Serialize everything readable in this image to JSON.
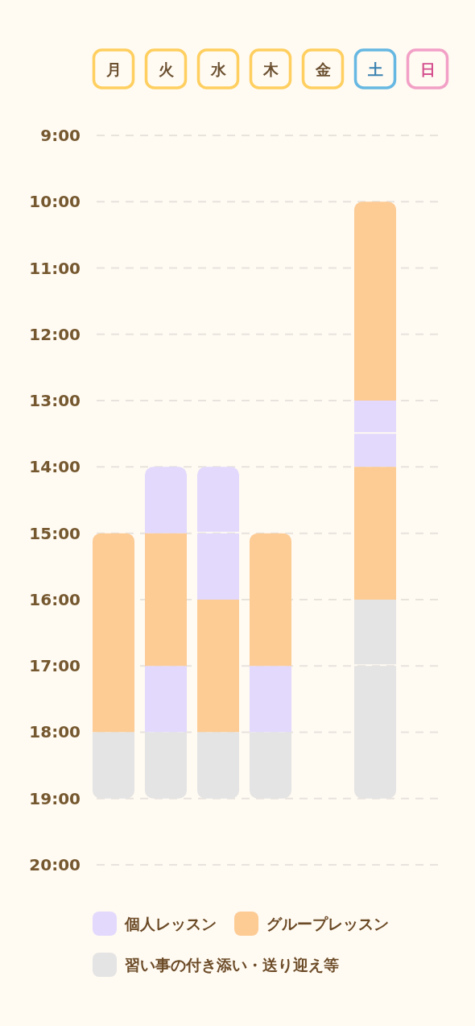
{
  "chart_data": {
    "type": "bar",
    "categories": [
      "月",
      "火",
      "水",
      "木",
      "金",
      "土",
      "日"
    ],
    "series": [
      {
        "name": "個人レッスン",
        "color": "#e2d9fd",
        "base": [
          null,
          14,
          14,
          null,
          null,
          13,
          null
        ],
        "values": [
          null,
          1,
          1,
          null,
          null,
          0.5,
          null
        ]
      },
      {
        "color": "#e2d9fd",
        "base": [
          null,
          17,
          15,
          17,
          null,
          13.5,
          null
        ],
        "values": [
          null,
          1,
          1,
          1,
          null,
          0.5,
          null
        ]
      },
      {
        "name": "グループレッスン",
        "color": "#fdcb94",
        "base": [
          15,
          15,
          16,
          15,
          null,
          10,
          null
        ],
        "values": [
          3,
          2,
          2,
          2,
          null,
          3,
          null
        ]
      },
      {
        "color": "#fdcb94",
        "base": [
          null,
          null,
          null,
          null,
          null,
          14,
          null
        ],
        "values": [
          null,
          null,
          null,
          null,
          null,
          2,
          null
        ]
      },
      {
        "name": "習い事の付き添い・送り迎え等",
        "color": "#e4e4e4",
        "base": [
          18,
          18,
          18,
          18,
          null,
          16,
          null
        ],
        "values": [
          1,
          1,
          1,
          1,
          null,
          1,
          null
        ]
      },
      {
        "color": "#e4e4e4",
        "base": [
          null,
          null,
          null,
          null,
          null,
          17,
          null
        ],
        "values": [
          null,
          null,
          null,
          null,
          null,
          2,
          null
        ]
      }
    ],
    "ylim": [
      20,
      9
    ],
    "yticks": [
      {
        "value": 9,
        "label": "9:00"
      },
      {
        "value": 10,
        "label": "10:00"
      },
      {
        "value": 11,
        "label": "11:00"
      },
      {
        "value": 12,
        "label": "12:00"
      },
      {
        "value": 13,
        "label": "13:00"
      },
      {
        "value": 14,
        "label": "14:00"
      },
      {
        "value": 15,
        "label": "15:00"
      },
      {
        "value": 16,
        "label": "16:00"
      },
      {
        "value": 17,
        "label": "17:00"
      },
      {
        "value": 18,
        "label": "18:00"
      },
      {
        "value": 19,
        "label": "19:00"
      },
      {
        "value": 20,
        "label": "20:00"
      }
    ],
    "grid": "y",
    "legend": "bottom"
  }
}
